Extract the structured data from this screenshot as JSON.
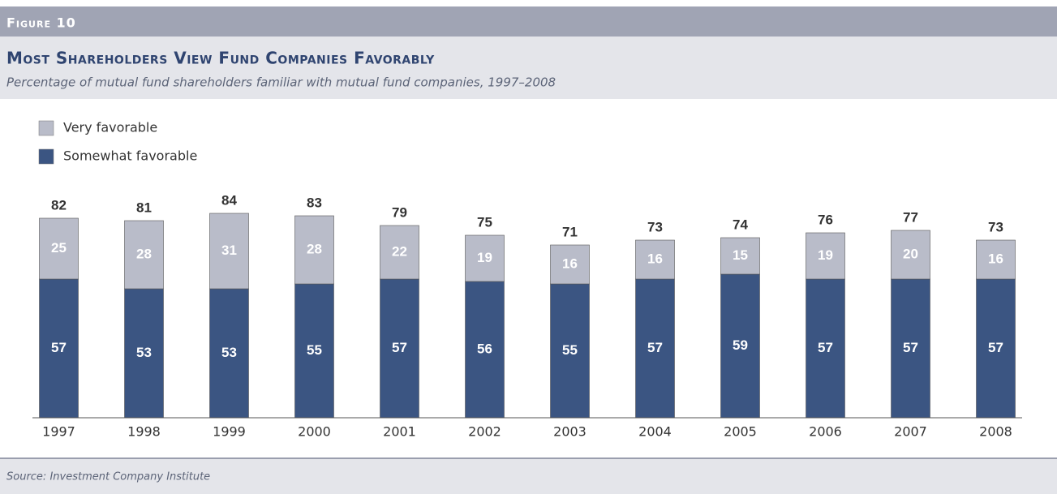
{
  "chart_data": {
    "type": "stacked-bar",
    "figure_label": "Figure 10",
    "title": "Most Shareholders View Fund Companies Favorably",
    "subtitle": "Percentage of mutual fund shareholders familiar with mutual fund companies, 1997–2008",
    "source": "Source: Investment Company Institute",
    "categories": [
      "1997",
      "1998",
      "1999",
      "2000",
      "2001",
      "2002",
      "2003",
      "2004",
      "2005",
      "2006",
      "2007",
      "2008"
    ],
    "series": [
      {
        "name": "Somewhat favorable",
        "color": "#3b5582",
        "values": [
          57,
          53,
          53,
          55,
          57,
          56,
          55,
          57,
          59,
          57,
          57,
          57
        ]
      },
      {
        "name": "Very favorable",
        "color": "#b9bcc9",
        "values": [
          25,
          28,
          31,
          28,
          22,
          19,
          16,
          16,
          15,
          19,
          20,
          16
        ]
      }
    ],
    "totals": [
      82,
      81,
      84,
      83,
      79,
      75,
      71,
      73,
      74,
      76,
      77,
      73
    ],
    "ylim": [
      0,
      90
    ],
    "grid": false
  }
}
